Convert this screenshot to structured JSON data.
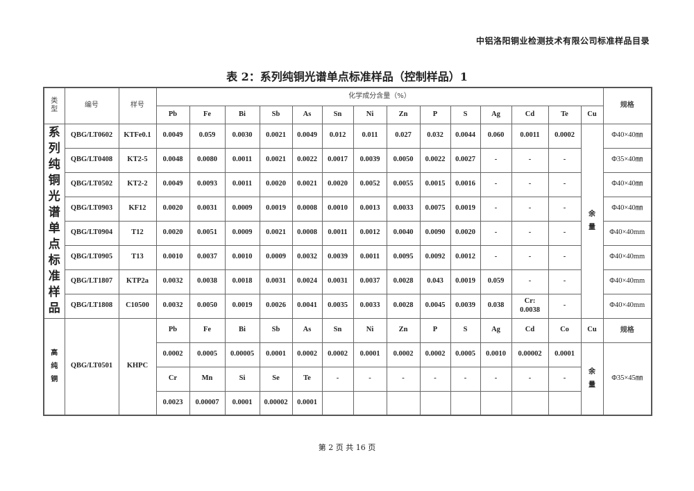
{
  "header": {
    "org_title": "中铝洛阳铜业检测技术有限公司标准样品目录"
  },
  "title": "表 2：系列纯铜光谱单点标准样品（控制样品）1",
  "table": {
    "head": {
      "type": "类\n型",
      "code": "编号",
      "sample": "样号",
      "chem": "化学成分含量（%）",
      "spec": "规格"
    },
    "elements": [
      "Pb",
      "Fe",
      "Bi",
      "Sb",
      "As",
      "Sn",
      "Ni",
      "Zn",
      "P",
      "S",
      "Ag",
      "Cd",
      "Te",
      "Cu"
    ],
    "group1": {
      "type": "系\n列\n纯\n铜\n光\n谱\n单\n点\n标\n准\n样\n品",
      "cu": "余\n量",
      "rows": [
        {
          "code": "QBG/LT0602",
          "sample": "KTFe0.1",
          "values": [
            "0.0049",
            "0.059",
            "0.0030",
            "0.0021",
            "0.0049",
            "0.012",
            "0.011",
            "0.027",
            "0.032",
            "0.0044",
            "0.060",
            "0.0011",
            "0.0002"
          ],
          "spec": "Φ40×40㎜"
        },
        {
          "code": "QBG/LT0408",
          "sample": "KT2-5",
          "values": [
            "0.0048",
            "0.0080",
            "0.0011",
            "0.0021",
            "0.0022",
            "0.0017",
            "0.0039",
            "0.0050",
            "0.0022",
            "0.0027",
            "-",
            "-",
            "-"
          ],
          "spec": "Φ35×40㎜"
        },
        {
          "code": "QBG/LT0502",
          "sample": "KT2-2",
          "values": [
            "0.0049",
            "0.0093",
            "0.0011",
            "0.0020",
            "0.0021",
            "0.0020",
            "0.0052",
            "0.0055",
            "0.0015",
            "0.0016",
            "-",
            "-",
            "-"
          ],
          "spec": "Φ40×40㎜"
        },
        {
          "code": "QBG/LT0903",
          "sample": "KF12",
          "values": [
            "0.0020",
            "0.0031",
            "0.0009",
            "0.0019",
            "0.0008",
            "0.0010",
            "0.0013",
            "0.0033",
            "0.0075",
            "0.0019",
            "-",
            "-",
            "-"
          ],
          "spec": "Φ40×40㎜"
        },
        {
          "code": "QBG/LT0904",
          "sample": "T12",
          "values": [
            "0.0020",
            "0.0051",
            "0.0009",
            "0.0021",
            "0.0008",
            "0.0011",
            "0.0012",
            "0.0040",
            "0.0090",
            "0.0020",
            "-",
            "-",
            "-"
          ],
          "spec": "Φ40×40mm"
        },
        {
          "code": "QBG/LT0905",
          "sample": "T13",
          "values": [
            "0.0010",
            "0.0037",
            "0.0010",
            "0.0009",
            "0.0032",
            "0.0039",
            "0.0011",
            "0.0095",
            "0.0092",
            "0.0012",
            "-",
            "-",
            "-"
          ],
          "spec": "Φ40×40mm"
        },
        {
          "code": "QBG/LT1807",
          "sample": "KTP2a",
          "values": [
            "0.0032",
            "0.0038",
            "0.0018",
            "0.0031",
            "0.0024",
            "0.0031",
            "0.0037",
            "0.0028",
            "0.043",
            "0.0019",
            "0.059",
            "-",
            "-"
          ],
          "spec": "Φ40×40mm"
        },
        {
          "code": "QBG/LT1808",
          "sample": "C10500",
          "values": [
            "0.0032",
            "0.0050",
            "0.0019",
            "0.0026",
            "0.0041",
            "0.0035",
            "0.0033",
            "0.0028",
            "0.0045",
            "0.0039",
            "0.038",
            "Cr:\n0.0038",
            "-"
          ],
          "spec": "Φ40×40mm"
        }
      ]
    },
    "group2": {
      "type": "高\n纯\n铜",
      "code": "QBG/LT0501",
      "sample": "KHPC",
      "cu": "余\n量",
      "spec_label": "规格",
      "spec": "Φ35×45㎜",
      "rows": [
        [
          "Pb",
          "Fe",
          "Bi",
          "Sb",
          "As",
          "Sn",
          "Ni",
          "Zn",
          "P",
          "S",
          "Ag",
          "Cd",
          "Co",
          "Cu"
        ],
        [
          "0.0002",
          "0.0005",
          "0.00005",
          "0.0001",
          "0.0002",
          "0.0002",
          "0.0001",
          "0.0002",
          "0.0002",
          "0.0005",
          "0.0010",
          "0.00002",
          "0.0001"
        ],
        [
          "Cr",
          "Mn",
          "Si",
          "Se",
          "Te",
          "-",
          "-",
          "-",
          "-",
          "-",
          "-",
          "-",
          "-"
        ],
        [
          "0.0023",
          "0.00007",
          "0.0001",
          "0.00002",
          "0.0001",
          "",
          "",
          "",
          "",
          "",
          "",
          "",
          ""
        ]
      ]
    }
  },
  "footer": {
    "page": "第 2 页 共 16 页"
  }
}
